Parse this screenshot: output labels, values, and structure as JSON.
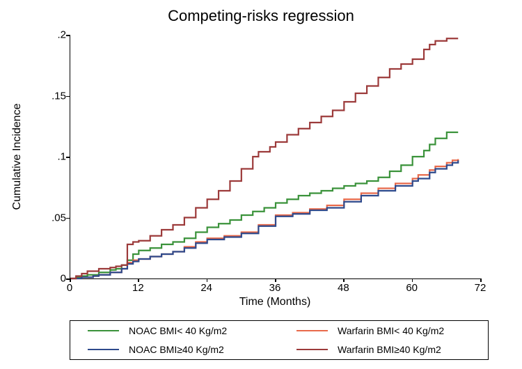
{
  "chart": {
    "type": "step-line",
    "title": "Competing-risks regression",
    "title_fontsize": 22,
    "xlabel": "Time (Months)",
    "ylabel": "Cumulative Incidence",
    "label_fontsize": 16,
    "tick_fontsize": 15,
    "background_color": "#ffffff",
    "border_color": "#000000",
    "xlim": [
      0,
      72
    ],
    "ylim": [
      0,
      0.2
    ],
    "xticks": [
      0,
      12,
      24,
      36,
      48,
      60,
      72
    ],
    "yticks": [
      0,
      0.05,
      0.1,
      0.15,
      0.2
    ],
    "ytick_labels": [
      "0",
      ".05",
      ".1",
      ".15",
      ".2"
    ],
    "line_width": 2.2,
    "series": [
      {
        "name": "noac-bmi-lt40",
        "label": "NOAC BMI< 40 Kg/m2",
        "color": "#3a923a",
        "x": [
          0,
          1,
          2,
          3,
          5,
          7,
          8,
          9,
          10,
          11,
          12,
          14,
          16,
          18,
          20,
          22,
          24,
          26,
          28,
          30,
          32,
          34,
          36,
          38,
          40,
          42,
          44,
          46,
          48,
          50,
          52,
          54,
          56,
          58,
          60,
          62,
          63,
          64,
          66,
          68
        ],
        "y": [
          0,
          0.001,
          0.002,
          0.003,
          0.005,
          0.007,
          0.008,
          0.011,
          0.015,
          0.02,
          0.023,
          0.025,
          0.028,
          0.03,
          0.033,
          0.038,
          0.042,
          0.045,
          0.048,
          0.052,
          0.055,
          0.058,
          0.062,
          0.065,
          0.068,
          0.07,
          0.072,
          0.074,
          0.076,
          0.078,
          0.08,
          0.083,
          0.088,
          0.093,
          0.1,
          0.105,
          0.11,
          0.115,
          0.12,
          0.12
        ]
      },
      {
        "name": "warfarin-bmi-lt40",
        "label": "Warfarin BMI< 40 Kg/m2",
        "color": "#e8694a",
        "x": [
          0,
          2,
          4,
          5,
          7,
          9,
          10,
          11,
          12,
          14,
          16,
          18,
          20,
          22,
          24,
          27,
          30,
          33,
          36,
          39,
          42,
          45,
          48,
          51,
          54,
          57,
          60,
          61,
          63,
          64,
          66,
          67,
          68
        ],
        "y": [
          0,
          0.001,
          0.002,
          0.003,
          0.005,
          0.008,
          0.013,
          0.015,
          0.016,
          0.018,
          0.02,
          0.022,
          0.026,
          0.03,
          0.033,
          0.035,
          0.038,
          0.044,
          0.052,
          0.054,
          0.057,
          0.06,
          0.065,
          0.07,
          0.074,
          0.078,
          0.082,
          0.085,
          0.089,
          0.092,
          0.095,
          0.097,
          0.098
        ]
      },
      {
        "name": "noac-bmi-ge40",
        "label": "NOAC BMI≥40 Kg/m2",
        "color": "#2e4a8c",
        "x": [
          0,
          2,
          4,
          5,
          7,
          9,
          10,
          11,
          12,
          14,
          16,
          18,
          20,
          22,
          24,
          27,
          30,
          33,
          36,
          39,
          42,
          45,
          48,
          51,
          54,
          57,
          60,
          61,
          63,
          64,
          66,
          67,
          68
        ],
        "y": [
          0,
          0.001,
          0.002,
          0.003,
          0.005,
          0.008,
          0.012,
          0.014,
          0.016,
          0.018,
          0.02,
          0.022,
          0.025,
          0.029,
          0.032,
          0.034,
          0.037,
          0.043,
          0.051,
          0.053,
          0.056,
          0.058,
          0.063,
          0.068,
          0.072,
          0.076,
          0.08,
          0.082,
          0.087,
          0.09,
          0.093,
          0.095,
          0.097
        ]
      },
      {
        "name": "warfarin-bmi-ge40",
        "label": "Warfarin BMI≥40 Kg/m2",
        "color": "#9c3a3a",
        "x": [
          0,
          1,
          2,
          3,
          5,
          7,
          8,
          9,
          10,
          11,
          12,
          14,
          16,
          18,
          20,
          22,
          24,
          26,
          28,
          30,
          32,
          33,
          35,
          36,
          38,
          40,
          42,
          44,
          46,
          48,
          50,
          52,
          54,
          56,
          58,
          60,
          62,
          63,
          64,
          66,
          68
        ],
        "y": [
          0,
          0.002,
          0.004,
          0.006,
          0.008,
          0.009,
          0.01,
          0.011,
          0.028,
          0.03,
          0.031,
          0.035,
          0.04,
          0.044,
          0.05,
          0.058,
          0.065,
          0.072,
          0.08,
          0.09,
          0.1,
          0.104,
          0.108,
          0.112,
          0.118,
          0.123,
          0.128,
          0.133,
          0.138,
          0.145,
          0.152,
          0.158,
          0.165,
          0.172,
          0.176,
          0.18,
          0.188,
          0.192,
          0.195,
          0.197,
          0.197
        ]
      }
    ],
    "legend": {
      "position": "bottom",
      "columns": 2,
      "font_size": 14,
      "border_color": "#000000",
      "order": [
        "noac-bmi-lt40",
        "warfarin-bmi-lt40",
        "noac-bmi-ge40",
        "warfarin-bmi-ge40"
      ]
    }
  }
}
